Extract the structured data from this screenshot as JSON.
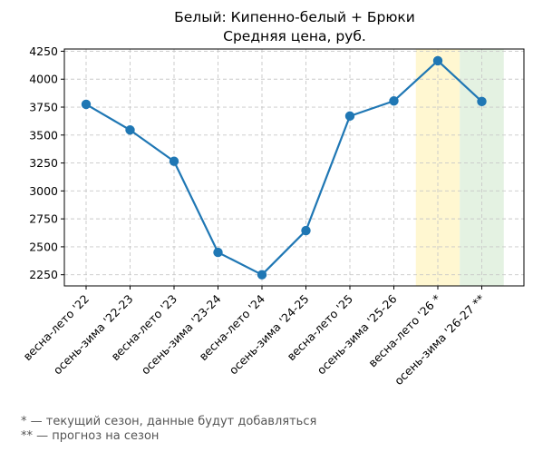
{
  "chart_data": {
    "type": "line",
    "title": "Белый: Кипенно-белый + Брюки",
    "subtitle": "Средняя цена, руб.",
    "xlabel": "",
    "ylabel": "",
    "categories": [
      "весна-лето '22",
      "осень-зима '22-23",
      "весна-лето '23",
      "осень-зима '23-24",
      "весна-лето '24",
      "осень-зима '24-25",
      "весна-лето '25",
      "осень-зима '25-26",
      "весна-лето '26 *",
      "осень-зима '26-27 **"
    ],
    "series": [
      {
        "values": [
          3775,
          3545,
          3265,
          2450,
          2250,
          2645,
          3670,
          3805,
          4165,
          3800
        ]
      }
    ],
    "ylim": [
      2150,
      4270
    ],
    "yticks": [
      2250,
      2500,
      2750,
      3000,
      3250,
      3500,
      3750,
      4000,
      4250
    ],
    "grid": true,
    "highlights": [
      {
        "category_index": 8,
        "color": "#fff7d1"
      },
      {
        "category_index": 9,
        "color": "#e4f2e2"
      }
    ],
    "line_color": "#1f77b4"
  },
  "footnotes": {
    "current": "* — текущий сезон, данные будут добавляться",
    "forecast": "** — прогноз на сезон"
  }
}
